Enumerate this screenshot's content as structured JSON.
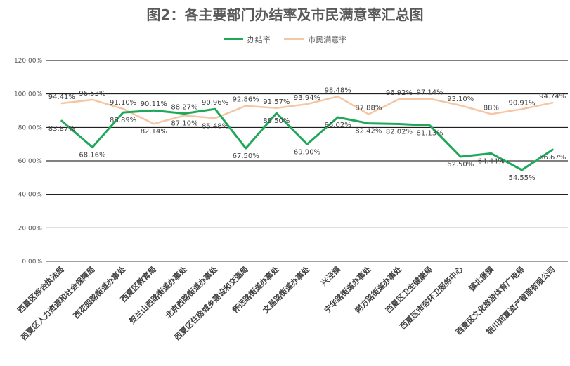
{
  "chart_data": {
    "type": "line",
    "title": "图2：各主要部门办结率及市民满意率汇总图",
    "ylim": [
      0,
      120
    ],
    "yticks": [
      "0.00%",
      "20.00%",
      "40.00%",
      "60.00%",
      "80.00%",
      "100.00%",
      "120.00%"
    ],
    "grid": true,
    "legend_position": "top",
    "categories": [
      "西夏区综合执法局",
      "西夏区人力资源和社会保障局",
      "西花园路街道办事处",
      "西夏区教育局",
      "贺兰山西路街道办事处",
      "北京西路街道办事处",
      "西夏区住房城乡建设和交通局",
      "怀远路街道办事处",
      "文昌路街道办事处",
      "兴泾镇",
      "宁华路街道办事处",
      "朔方路街道办事处",
      "西夏区卫生健康局",
      "西夏区市容环卫服务中心",
      "镇北堡镇",
      "西夏区文化旅游体育广电局",
      "银川润夏资产管理有限公司"
    ],
    "series": [
      {
        "name": "办结率",
        "color": "#20a85a",
        "values": [
          83.87,
          68.16,
          88.89,
          90.11,
          88.27,
          90.96,
          67.5,
          88.5,
          69.9,
          86.02,
          82.42,
          82.02,
          81.13,
          62.5,
          64.44,
          54.55,
          66.67
        ],
        "labels": [
          "83.87%",
          "68.16%",
          "88.89%",
          "90.11%",
          "88.27%",
          "90.96%",
          "67.50%",
          "88.50%",
          "69.90%",
          "86.02%",
          "82.42%",
          "82.02%",
          "81.13%",
          "62.50%",
          "64.44%",
          "54.55%",
          "66.67%"
        ]
      },
      {
        "name": "市民满意率",
        "color": "#f5c6a3",
        "values": [
          94.41,
          96.53,
          91.1,
          82.14,
          87.1,
          85.48,
          92.86,
          91.57,
          93.94,
          98.48,
          87.88,
          96.92,
          97.14,
          93.1,
          88.0,
          90.91,
          94.74
        ],
        "labels": [
          "94.41%",
          "96.53%",
          "91.10%",
          "82.14%",
          "87.10%",
          "85.48%",
          "92.86%",
          "91.57%",
          "93.94%",
          "98.48%",
          "87.88%",
          "96.92%",
          "97.14%",
          "93.10%",
          "88%",
          "90.91%",
          "94.74%"
        ]
      }
    ]
  }
}
